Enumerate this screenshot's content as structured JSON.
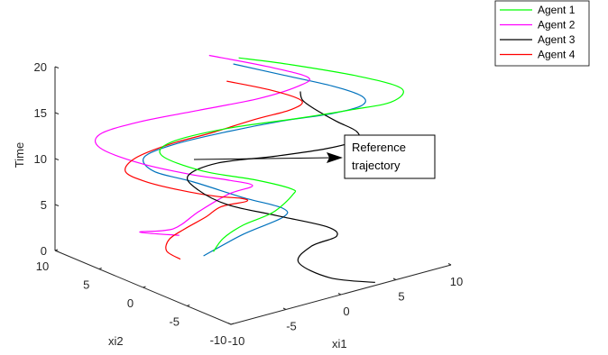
{
  "chart_data": {
    "type": "line",
    "subtype": "3d-line",
    "xlabel": "xi1",
    "ylabel": "xi2",
    "zlabel": "Time",
    "xlim": [
      -10,
      10
    ],
    "ylim": [
      -10,
      10
    ],
    "zlim": [
      0,
      20
    ],
    "x_ticks": [
      "-10",
      "-5",
      "0",
      "5",
      "10"
    ],
    "y_ticks": [
      "-10",
      "-5",
      "0",
      "5",
      "10"
    ],
    "z_ticks": [
      "0",
      "5",
      "10",
      "15",
      "20"
    ],
    "grid": false,
    "legend_position": "top-right",
    "annotation": {
      "text_line1": "Reference",
      "text_line2": "trajectory"
    },
    "series": [
      {
        "name": "Agent 1",
        "color": "#00ff00",
        "points": [
          [
            -2,
            2,
            0.5
          ],
          [
            -1.5,
            1.5,
            2
          ],
          [
            -0.5,
            0.5,
            3.5
          ],
          [
            1,
            -1,
            5
          ],
          [
            2,
            -2,
            7
          ],
          [
            1.5,
            -2.5,
            8
          ],
          [
            -0.5,
            -1,
            9
          ],
          [
            -3.5,
            1.5,
            10
          ],
          [
            -5.5,
            3.5,
            11.5
          ],
          [
            -5,
            3,
            13
          ],
          [
            -2,
            0.5,
            14.5
          ],
          [
            2,
            -2.5,
            15.5
          ],
          [
            5,
            -5,
            16.5
          ],
          [
            7,
            -7,
            17.5
          ],
          [
            7.5,
            -7.5,
            19
          ],
          [
            5.5,
            -5,
            20
          ],
          [
            2,
            -1.5,
            21
          ],
          [
            -0.5,
            1,
            21.5
          ]
        ]
      },
      {
        "name": "Agent 2",
        "color": "#ff00ff",
        "points": [
          [
            -1.5,
            6.5,
            0.3
          ],
          [
            -3.5,
            8.5,
            0.5
          ],
          [
            -1.8,
            6.8,
            1
          ],
          [
            -0.5,
            5.5,
            3
          ],
          [
            1,
            4,
            5
          ],
          [
            2.2,
            2.8,
            6
          ],
          [
            1,
            4,
            6.5
          ],
          [
            -1,
            6,
            7
          ],
          [
            -3.5,
            8.5,
            8
          ],
          [
            -5.5,
            10.5,
            9.5
          ],
          [
            -5.5,
            10.5,
            11
          ],
          [
            -3.5,
            8.5,
            12.5
          ],
          [
            -0.5,
            5.5,
            14
          ],
          [
            2.5,
            2.5,
            15.5
          ],
          [
            4.5,
            0.5,
            17
          ],
          [
            5,
            0,
            18
          ],
          [
            3,
            2,
            19
          ],
          [
            0,
            5,
            20
          ]
        ]
      },
      {
        "name": "Agent 3",
        "color": "#000000",
        "points": [
          [
            3.5,
            -9.5,
            0
          ],
          [
            1,
            -7.5,
            0.5
          ],
          [
            -0.5,
            -5.8,
            2
          ],
          [
            0.5,
            -6,
            3.5
          ],
          [
            2,
            -7,
            4.5
          ],
          [
            1.5,
            -6.5,
            5.5
          ],
          [
            -1,
            -4,
            6.5
          ],
          [
            -3.5,
            -1.5,
            7.5
          ],
          [
            -5,
            0,
            9
          ],
          [
            -5.5,
            0.5,
            10.5
          ],
          [
            -4,
            -1,
            12
          ],
          [
            -1,
            -4,
            13
          ],
          [
            1.5,
            -6.5,
            14
          ],
          [
            3,
            -8,
            15
          ],
          [
            3,
            -8,
            16
          ],
          [
            2,
            -7,
            17
          ],
          [
            1.2,
            -5.5,
            18
          ],
          [
            0.5,
            -5,
            19
          ],
          [
            0.3,
            -5,
            20
          ]
        ]
      },
      {
        "name": "Agent 4",
        "color": "#ff0000",
        "points": [
          [
            -4.2,
            3,
            0
          ],
          [
            -4.5,
            4.2,
            0.5
          ],
          [
            -4,
            4.5,
            1.5
          ],
          [
            -3,
            4,
            2.5
          ],
          [
            -1.5,
            3.5,
            3.5
          ],
          [
            -0.5,
            3,
            4.5
          ],
          [
            1,
            2,
            5
          ],
          [
            0.5,
            2,
            5.5
          ],
          [
            -1,
            3,
            5.8
          ],
          [
            -3,
            4.5,
            6.5
          ],
          [
            -5,
            6,
            7.5
          ],
          [
            -6,
            7,
            8.5
          ],
          [
            -5.5,
            6.5,
            10
          ],
          [
            -3.5,
            5,
            11.5
          ],
          [
            -1,
            3.5,
            12.5
          ],
          [
            1.5,
            1.5,
            14
          ],
          [
            3.5,
            0,
            15
          ],
          [
            4,
            -0.5,
            16
          ],
          [
            2.5,
            1,
            17
          ],
          [
            0,
            3,
            18
          ]
        ]
      },
      {
        "name": "",
        "color": "#0072bd",
        "points": [
          [
            -2.5,
            2.5,
            0
          ],
          [
            -0.5,
            0.5,
            2.5
          ],
          [
            1.5,
            -1.5,
            4.5
          ],
          [
            1.5,
            -1.5,
            5.5
          ],
          [
            -0.5,
            0.5,
            6.5
          ],
          [
            -3,
            3,
            8
          ],
          [
            -5,
            5,
            9
          ],
          [
            -5.5,
            5.5,
            10.5
          ],
          [
            -4,
            4,
            12
          ],
          [
            -1.5,
            1.5,
            13.5
          ],
          [
            1.5,
            -1.5,
            15
          ],
          [
            4,
            -4,
            16
          ],
          [
            5.5,
            -5.5,
            17
          ],
          [
            5.5,
            -5.5,
            18
          ],
          [
            4,
            -4,
            19
          ],
          [
            1.5,
            -1.5,
            20
          ],
          [
            -1,
            1,
            21
          ]
        ]
      }
    ]
  }
}
